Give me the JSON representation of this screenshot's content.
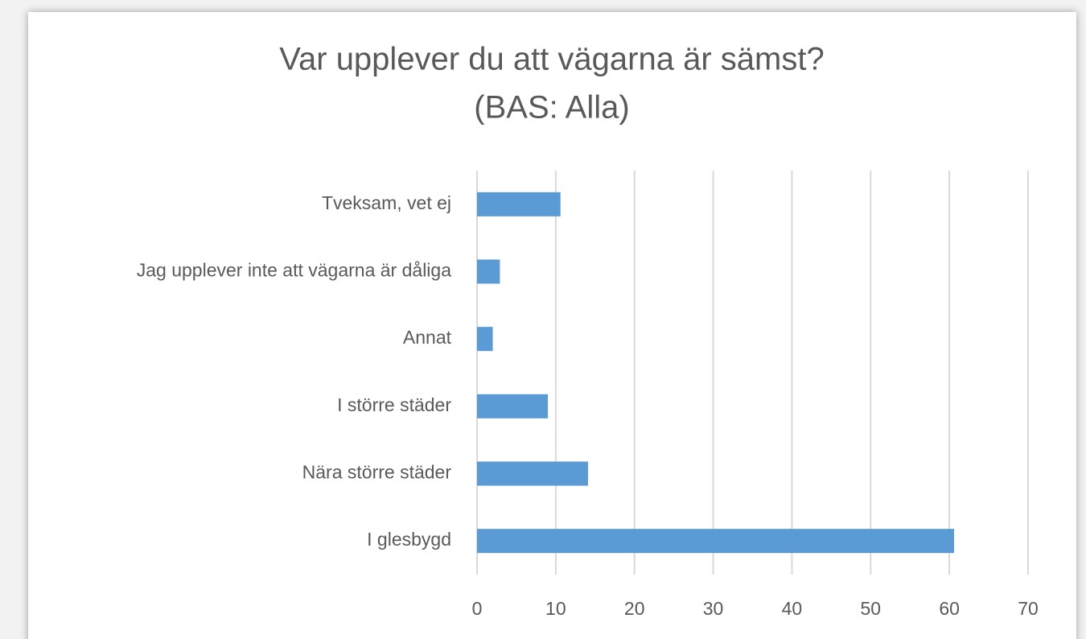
{
  "chart_data": {
    "type": "bar",
    "orientation": "horizontal",
    "title": "Var upplever du att vägarna är sämst?",
    "subtitle": "(BAS: Alla)",
    "categories": [
      "Tveksam, vet ej",
      "Jag upplever inte att vägarna är dåliga",
      "Annat",
      "I större städer",
      "Nära större städer",
      "I glesbygd"
    ],
    "values": [
      10.6,
      2.9,
      2.0,
      9.0,
      14.1,
      60.6
    ],
    "color": "#5b9bd5",
    "xlim": [
      0,
      70
    ],
    "xticks": [
      0,
      10,
      20,
      30,
      40,
      50,
      60,
      70
    ],
    "grid": true
  }
}
